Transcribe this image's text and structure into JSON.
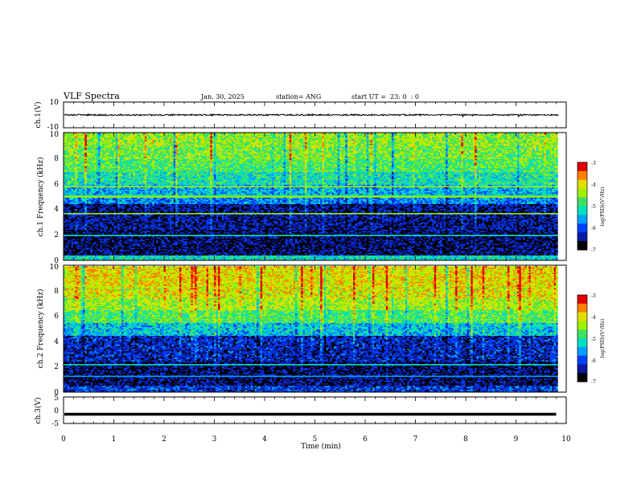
{
  "header": {
    "title": "VLF Spectra",
    "date": "Jan. 30, 2025",
    "station": "station= ANG",
    "start": "start UT =  23: 0  : 0"
  },
  "colors": {
    "colormap": [
      "#000000",
      "#0a1aa0",
      "#0040ff",
      "#00a0ff",
      "#00e0c0",
      "#40e060",
      "#a0f000",
      "#e0e000",
      "#ff8000",
      "#e00000"
    ]
  },
  "chart_data": [
    {
      "type": "line",
      "panel": "waveform-ch1",
      "ylabel": "ch.1(V)",
      "ylim": [
        -10,
        10
      ],
      "ytick_labels": [
        "10",
        "-10"
      ],
      "baseline": 0,
      "x_range_min": [
        0,
        10
      ]
    },
    {
      "type": "heatmap",
      "panel": "spectrogram-ch1",
      "ylabel": "ch.1 Frequency (kHz)",
      "ylim": [
        0,
        10
      ],
      "ytick_labels": [
        "0",
        "2",
        "4",
        "6",
        "8",
        "10"
      ],
      "x_range_min": [
        0,
        9.8
      ],
      "colorbar": {
        "label": "log(PSD)(V²/Hz)",
        "range": [
          -7,
          -3
        ],
        "tick_labels": [
          "-3",
          "-4",
          "-5",
          "-6",
          "-7"
        ]
      },
      "bands": [
        {
          "from_khz": 0.0,
          "to_khz": 0.4,
          "level": 0.45
        },
        {
          "from_khz": 0.4,
          "to_khz": 2.4,
          "level": 0.1
        },
        {
          "from_khz": 2.4,
          "to_khz": 4.4,
          "level": 0.14
        },
        {
          "from_khz": 4.4,
          "to_khz": 5.0,
          "level": 0.32
        },
        {
          "from_khz": 5.0,
          "to_khz": 6.0,
          "level": 0.38
        },
        {
          "from_khz": 6.0,
          "to_khz": 7.0,
          "level": 0.48
        },
        {
          "from_khz": 7.0,
          "to_khz": 8.0,
          "level": 0.55
        },
        {
          "from_khz": 8.0,
          "to_khz": 9.0,
          "level": 0.6
        },
        {
          "from_khz": 9.0,
          "to_khz": 10.0,
          "level": 0.63
        }
      ]
    },
    {
      "type": "heatmap",
      "panel": "spectrogram-ch2",
      "ylabel": "ch.2 Frequency (kHz)",
      "ylim": [
        0,
        10
      ],
      "ytick_labels": [
        "0",
        "2",
        "4",
        "6",
        "8",
        "10"
      ],
      "x_range_min": [
        0,
        9.8
      ],
      "colorbar": {
        "label": "log(PSD)(V²/Hz)",
        "range": [
          -7,
          -3
        ],
        "tick_labels": [
          "-3",
          "-4",
          "-5",
          "-6",
          "-7"
        ]
      },
      "bands": [
        {
          "from_khz": 0.0,
          "to_khz": 0.5,
          "level": 0.22
        },
        {
          "from_khz": 0.5,
          "to_khz": 2.5,
          "level": 0.1
        },
        {
          "from_khz": 2.5,
          "to_khz": 4.5,
          "level": 0.18
        },
        {
          "from_khz": 4.5,
          "to_khz": 5.5,
          "level": 0.4
        },
        {
          "from_khz": 5.5,
          "to_khz": 6.5,
          "level": 0.55
        },
        {
          "from_khz": 6.5,
          "to_khz": 7.5,
          "level": 0.66
        },
        {
          "from_khz": 7.5,
          "to_khz": 8.5,
          "level": 0.72
        },
        {
          "from_khz": 8.5,
          "to_khz": 10.0,
          "level": 0.74
        }
      ]
    },
    {
      "type": "line",
      "panel": "waveform-ch3",
      "ylabel": "ch.3(V)",
      "ylim": [
        -5,
        5
      ],
      "ytick_labels": [
        "5",
        "0",
        "-5"
      ],
      "baseline": -1.5,
      "x_range_min": [
        0,
        9.8
      ]
    }
  ],
  "xaxis": {
    "label": "Time (min)",
    "ticks": [
      "0",
      "1",
      "2",
      "3",
      "4",
      "5",
      "6",
      "7",
      "8",
      "9",
      "10"
    ],
    "range": [
      0,
      10
    ]
  }
}
